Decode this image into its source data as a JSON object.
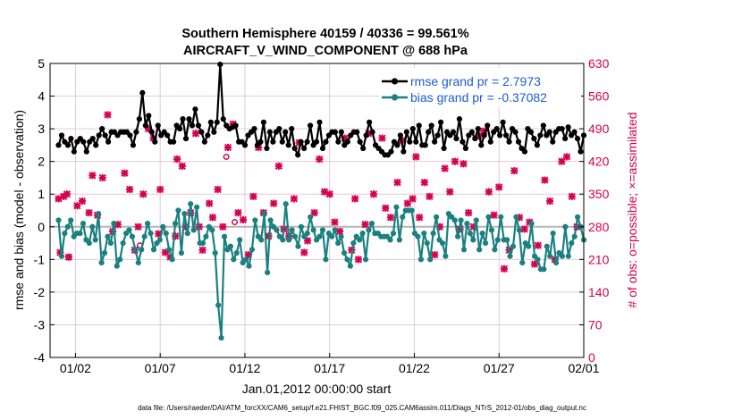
{
  "chart_data": {
    "type": "line",
    "title_line1": "Southern Hemisphere 40159 / 40336 = 99.561%",
    "title_line2": "AIRCRAFT_V_WIND_COMPONENT @ 688 hPa",
    "xlabel": "Jan.01,2012 00:00:00 start",
    "ylabel_left": "rmse and bias (model - observation)",
    "ylabel_right": "# of obs: o=possible; ×=assimilated",
    "xlim": [
      0.5,
      32.0
    ],
    "ylim_left": [
      -4,
      5
    ],
    "ylim_right": [
      0,
      630
    ],
    "x_tick_labels": [
      "01/02",
      "01/07",
      "01/12",
      "01/17",
      "01/22",
      "01/27",
      "02/01"
    ],
    "x_tick_days": [
      2,
      7,
      12,
      17,
      22,
      27,
      32
    ],
    "left_ticks": [
      "-4",
      "-3",
      "-2",
      "-1",
      "0",
      "1",
      "2",
      "3",
      "4",
      "5"
    ],
    "right_ticks": [
      "0",
      "70",
      "140",
      "210",
      "280",
      "350",
      "420",
      "490",
      "560",
      "630"
    ],
    "legend": [
      {
        "label": "rmse grand pr = 2.7973",
        "color": "#000000"
      },
      {
        "label": "bias grand pr = -0.37082",
        "color": "#1a8080"
      }
    ],
    "colors": {
      "rmse": "#000000",
      "bias": "#1a8080",
      "obs": "#d6004e",
      "zero_line": "#b5b5b5",
      "grid": "#e4c9d4"
    },
    "rmse": [
      2.5,
      2.8,
      2.6,
      2.5,
      2.7,
      2.3,
      2.6,
      2.7,
      2.6,
      2.3,
      2.6,
      2.7,
      2.5,
      2.8,
      3.0,
      2.8,
      2.6,
      2.9,
      2.9,
      2.8,
      2.9,
      2.9,
      2.9,
      2.8,
      2.5,
      2.9,
      3.3,
      4.1,
      3.1,
      3.4,
      2.9,
      2.6,
      3.1,
      2.8,
      2.9,
      2.8,
      2.6,
      2.6,
      3.1,
      3.0,
      3.3,
      2.7,
      3.3,
      3.1,
      3.6,
      3.1,
      2.9,
      2.6,
      2.8,
      3.2,
      2.9,
      3.2,
      4.97,
      3.3,
      3.1,
      3.0,
      3.05,
      3.1,
      2.6,
      2.6,
      2.5,
      2.8,
      2.9,
      3.0,
      2.5,
      2.6,
      3.2,
      2.4,
      2.9,
      2.6,
      2.9,
      3.0,
      2.6,
      2.9,
      2.5,
      3.0,
      2.4,
      2.2,
      2.6,
      2.4,
      2.6,
      3.1,
      2.5,
      2.6,
      3.2,
      2.4,
      2.6,
      2.8,
      2.9,
      2.9,
      2.6,
      2.9,
      2.5,
      2.6,
      2.8,
      2.9,
      2.9,
      2.6,
      2.4,
      2.8,
      3.2,
      2.9,
      2.5,
      2.4,
      2.3,
      2.2,
      2.2,
      2.3,
      2.6,
      2.5,
      2.8,
      2.3,
      2.9,
      2.6,
      3.0,
      2.6,
      3.1,
      2.5,
      2.5,
      2.9,
      3.1,
      2.6,
      2.8,
      3.2,
      2.4,
      2.9,
      2.8,
      2.9,
      2.7,
      3.3,
      2.6,
      2.4,
      2.8,
      2.9,
      2.7,
      3.0,
      2.5,
      2.8,
      3.1,
      2.6,
      2.9,
      3.0,
      2.8,
      3.2,
      2.8,
      2.6,
      3.0,
      2.9,
      2.6,
      2.4,
      2.3,
      3.0,
      2.9,
      2.7,
      2.5,
      2.8,
      3.1,
      2.8,
      2.9,
      2.6,
      2.9,
      3.0,
      3.0,
      2.7,
      3.05,
      2.8,
      2.9,
      2.7,
      2.3,
      2.8
    ],
    "bias": [
      0.2,
      -0.9,
      -0.2,
      0.0,
      0.2,
      -0.3,
      -0.2,
      -0.2,
      0.1,
      -0.4,
      -0.5,
      0.0,
      -0.4,
      0.4,
      -1.1,
      -0.8,
      -0.3,
      -0.5,
      0.1,
      -1.2,
      -1.0,
      -0.5,
      -0.2,
      -0.1,
      -0.3,
      -0.7,
      -1.1,
      -0.7,
      -0.3,
      0.1,
      -0.2,
      -0.7,
      -0.5,
      -0.4,
      0.0,
      -0.2,
      -0.7,
      -1.0,
      0.1,
      0.5,
      -0.8,
      0.4,
      -0.2,
      0.7,
      -0.1,
      0.6,
      -0.5,
      -0.5,
      -0.3,
      0.0,
      -0.1,
      -0.8,
      -2.4,
      -3.4,
      -0.3,
      -0.7,
      -0.6,
      -1.0,
      -0.8,
      -0.4,
      -1.1,
      -1.0,
      -1.2,
      -0.7,
      0.2,
      -0.3,
      -0.4,
      0.4,
      -1.4,
      0.2,
      0.0,
      -0.1,
      -0.3,
      -0.4,
      0.7,
      -0.4,
      -0.1,
      -0.3,
      -0.6,
      0.0,
      -0.3,
      -0.2,
      0.3,
      -0.1,
      -0.4,
      -0.3,
      -0.1,
      -1.0,
      -0.2,
      -0.3,
      -0.1,
      -0.5,
      -0.3,
      -0.8,
      -1.0,
      -1.2,
      -0.5,
      -0.3,
      -0.4,
      -0.2,
      -1.0,
      -0.1,
      0.1,
      -0.2,
      -0.2,
      -0.3,
      -0.3,
      -0.3,
      -0.4,
      -0.2,
      0.6,
      -0.4,
      0.3,
      0.5,
      0.5,
      0.5,
      -0.2,
      -0.3,
      -1.0,
      -0.2,
      -0.5,
      -1.0,
      -0.2,
      0.3,
      -0.4,
      -0.5,
      -0.9,
      0.4,
      0.3,
      0.2,
      -0.3,
      0.2,
      -0.7,
      0.1,
      -0.2,
      -0.4,
      0.2,
      -0.7,
      -0.2,
      -0.5,
      0.3,
      -0.1,
      -0.7,
      -0.4,
      0.3,
      -0.4,
      -0.4,
      -0.9,
      -0.6,
      0.3,
      -0.1,
      -1.1,
      -0.5,
      -0.6,
      0.1,
      -0.9,
      -1.0,
      -1.3,
      -1.3,
      -0.6,
      -0.9,
      -0.2,
      -1.1,
      -0.8,
      -0.9,
      0.0,
      -0.9,
      -0.5,
      -0.3,
      0.3,
      0.0,
      -0.4
    ],
    "obs_assimilated": [
      [
        1.0,
        340
      ],
      [
        1.3,
        345
      ],
      [
        1.5,
        350
      ],
      [
        1.1,
        225
      ],
      [
        1.6,
        215
      ],
      [
        2.1,
        325
      ],
      [
        2.4,
        335
      ],
      [
        2.8,
        310
      ],
      [
        3.0,
        390
      ],
      [
        3.3,
        305
      ],
      [
        3.6,
        385
      ],
      [
        3.9,
        520
      ],
      [
        4.2,
        270
      ],
      [
        4.5,
        285
      ],
      [
        4.9,
        395
      ],
      [
        5.2,
        360
      ],
      [
        5.5,
        230
      ],
      [
        5.7,
        280
      ],
      [
        6.0,
        350
      ],
      [
        6.3,
        490
      ],
      [
        6.6,
        470
      ],
      [
        6.9,
        265
      ],
      [
        7.0,
        360
      ],
      [
        7.3,
        225
      ],
      [
        7.6,
        215
      ],
      [
        7.9,
        260
      ],
      [
        8.0,
        425
      ],
      [
        8.3,
        410
      ],
      [
        8.5,
        280
      ],
      [
        8.8,
        310
      ],
      [
        9.1,
        480
      ],
      [
        9.3,
        280
      ],
      [
        9.5,
        230
      ],
      [
        9.9,
        330
      ],
      [
        10.1,
        300
      ],
      [
        10.4,
        360
      ],
      [
        10.7,
        280
      ],
      [
        11.0,
        450
      ],
      [
        11.3,
        500
      ],
      [
        11.6,
        310
      ],
      [
        11.9,
        295
      ],
      [
        12.2,
        220
      ],
      [
        12.5,
        345
      ],
      [
        12.8,
        450
      ],
      [
        13.1,
        310
      ],
      [
        13.4,
        260
      ],
      [
        13.7,
        330
      ],
      [
        14.0,
        410
      ],
      [
        14.3,
        275
      ],
      [
        14.6,
        260
      ],
      [
        14.9,
        340
      ],
      [
        15.2,
        460
      ],
      [
        15.5,
        225
      ],
      [
        15.7,
        250
      ],
      [
        16.1,
        310
      ],
      [
        16.4,
        425
      ],
      [
        16.7,
        355
      ],
      [
        17.0,
        350
      ],
      [
        17.3,
        290
      ],
      [
        17.6,
        270
      ],
      [
        17.9,
        470
      ],
      [
        18.3,
        230
      ],
      [
        18.5,
        340
      ],
      [
        18.7,
        210
      ],
      [
        19.1,
        285
      ],
      [
        19.3,
        480
      ],
      [
        19.6,
        350
      ],
      [
        20.1,
        470
      ],
      [
        20.3,
        320
      ],
      [
        20.6,
        300
      ],
      [
        21.0,
        375
      ],
      [
        21.3,
        465
      ],
      [
        21.6,
        330
      ],
      [
        21.9,
        340
      ],
      [
        22.1,
        430
      ],
      [
        22.3,
        300
      ],
      [
        22.6,
        375
      ],
      [
        22.9,
        345
      ],
      [
        23.2,
        220
      ],
      [
        23.5,
        280
      ],
      [
        23.8,
        405
      ],
      [
        24.1,
        355
      ],
      [
        24.4,
        420
      ],
      [
        24.7,
        275
      ],
      [
        24.9,
        415
      ],
      [
        25.2,
        310
      ],
      [
        25.5,
        280
      ],
      [
        25.8,
        475
      ],
      [
        26.1,
        485
      ],
      [
        26.4,
        355
      ],
      [
        26.7,
        305
      ],
      [
        27.0,
        365
      ],
      [
        27.3,
        190
      ],
      [
        27.6,
        230
      ],
      [
        27.9,
        400
      ],
      [
        28.2,
        300
      ],
      [
        28.5,
        275
      ],
      [
        28.8,
        290
      ],
      [
        29.1,
        200
      ],
      [
        29.3,
        240
      ],
      [
        29.7,
        380
      ],
      [
        30.0,
        335
      ],
      [
        30.3,
        210
      ],
      [
        30.7,
        420
      ],
      [
        31.0,
        430
      ],
      [
        31.3,
        345
      ],
      [
        31.6,
        280
      ]
    ],
    "obs_possible": [
      [
        5.8,
        240
      ],
      [
        11.4,
        290
      ],
      [
        10.9,
        430
      ],
      [
        1.6,
        215
      ]
    ]
  }
}
